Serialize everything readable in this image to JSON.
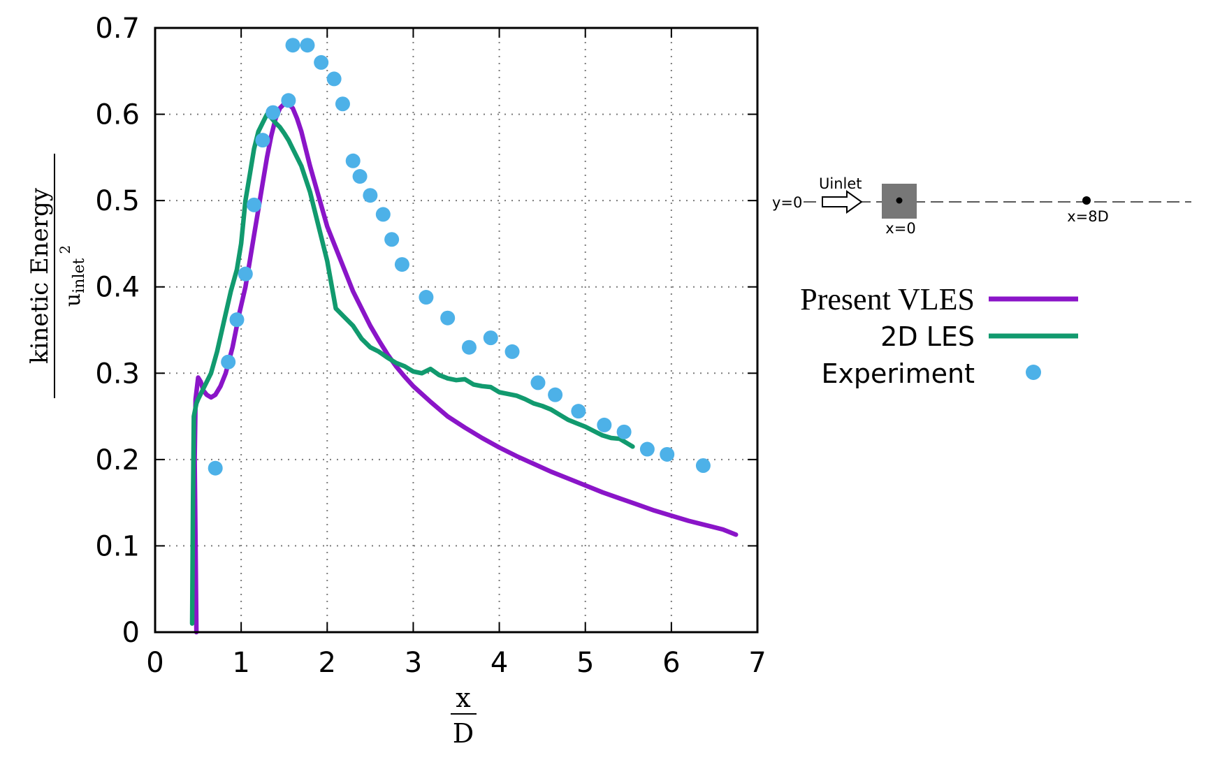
{
  "chart_data": {
    "type": "line",
    "title": "",
    "xlabel": {
      "numerator": "x",
      "denominator": "D"
    },
    "ylabel": {
      "numerator": "kinetic Energy",
      "denominator_base": "u",
      "denominator_sub": "inlet",
      "denominator_sup": "2"
    },
    "xlim": [
      0,
      7
    ],
    "ylim": [
      0,
      0.7
    ],
    "xticks": [
      0,
      1,
      2,
      3,
      4,
      5,
      6,
      7
    ],
    "yticks": [
      0,
      0.1,
      0.2,
      0.3,
      0.4,
      0.5,
      0.6,
      0.7
    ],
    "grid": true,
    "legend_position": "right",
    "series": [
      {
        "name": "Present VLES",
        "kind": "line",
        "color": "#8a15c8",
        "x": [
          0.48,
          0.47,
          0.46,
          0.47,
          0.5,
          0.53,
          0.56,
          0.6,
          0.65,
          0.7,
          0.76,
          0.82,
          0.9,
          0.98,
          1.05,
          1.1,
          1.15,
          1.2,
          1.25,
          1.3,
          1.35,
          1.4,
          1.45,
          1.5,
          1.55,
          1.6,
          1.65,
          1.7,
          1.75,
          1.8,
          1.9,
          2.0,
          2.1,
          2.2,
          2.3,
          2.4,
          2.5,
          2.6,
          2.7,
          2.8,
          2.9,
          3.0,
          3.2,
          3.4,
          3.6,
          3.8,
          4.0,
          4.2,
          4.4,
          4.6,
          4.8,
          5.0,
          5.2,
          5.4,
          5.6,
          5.8,
          6.0,
          6.2,
          6.4,
          6.6,
          6.75
        ],
        "y": [
          0.0,
          0.1,
          0.2,
          0.27,
          0.295,
          0.29,
          0.28,
          0.275,
          0.272,
          0.275,
          0.285,
          0.3,
          0.33,
          0.37,
          0.4,
          0.43,
          0.46,
          0.49,
          0.52,
          0.55,
          0.575,
          0.595,
          0.607,
          0.612,
          0.612,
          0.607,
          0.595,
          0.58,
          0.56,
          0.54,
          0.505,
          0.47,
          0.445,
          0.42,
          0.395,
          0.375,
          0.355,
          0.338,
          0.322,
          0.308,
          0.296,
          0.285,
          0.267,
          0.25,
          0.237,
          0.225,
          0.214,
          0.204,
          0.195,
          0.186,
          0.178,
          0.17,
          0.162,
          0.155,
          0.148,
          0.141,
          0.135,
          0.129,
          0.124,
          0.119,
          0.113
        ]
      },
      {
        "name": "2D LES",
        "kind": "line",
        "color": "#119a6e",
        "x": [
          0.43,
          0.44,
          0.45,
          0.48,
          0.5,
          0.55,
          0.6,
          0.65,
          0.72,
          0.8,
          0.88,
          0.95,
          1.0,
          1.05,
          1.1,
          1.15,
          1.2,
          1.25,
          1.3,
          1.35,
          1.4,
          1.45,
          1.5,
          1.55,
          1.6,
          1.7,
          1.8,
          1.9,
          2.0,
          2.1,
          2.2,
          2.3,
          2.4,
          2.5,
          2.6,
          2.7,
          2.8,
          2.9,
          3.0,
          3.1,
          3.2,
          3.3,
          3.4,
          3.5,
          3.6,
          3.7,
          3.8,
          3.9,
          4.0,
          4.1,
          4.2,
          4.3,
          4.4,
          4.5,
          4.6,
          4.7,
          4.8,
          4.9,
          5.0,
          5.1,
          5.2,
          5.3,
          5.4,
          5.5,
          5.55
        ],
        "y": [
          0.01,
          0.15,
          0.25,
          0.265,
          0.27,
          0.28,
          0.29,
          0.3,
          0.325,
          0.36,
          0.395,
          0.42,
          0.45,
          0.5,
          0.53,
          0.56,
          0.58,
          0.59,
          0.6,
          0.596,
          0.59,
          0.585,
          0.578,
          0.57,
          0.56,
          0.54,
          0.51,
          0.47,
          0.43,
          0.375,
          0.365,
          0.355,
          0.34,
          0.33,
          0.325,
          0.318,
          0.312,
          0.308,
          0.302,
          0.3,
          0.305,
          0.298,
          0.294,
          0.292,
          0.293,
          0.287,
          0.285,
          0.284,
          0.278,
          0.276,
          0.274,
          0.27,
          0.265,
          0.262,
          0.258,
          0.252,
          0.246,
          0.242,
          0.238,
          0.233,
          0.228,
          0.225,
          0.224,
          0.218,
          0.215
        ]
      },
      {
        "name": "Experiment",
        "kind": "scatter",
        "color": "#4db1e8",
        "x": [
          0.7,
          0.85,
          0.95,
          1.05,
          1.15,
          1.25,
          1.37,
          1.55,
          1.6,
          1.77,
          1.93,
          2.08,
          2.18,
          2.3,
          2.38,
          2.5,
          2.65,
          2.75,
          2.87,
          3.15,
          3.4,
          3.65,
          3.9,
          4.15,
          4.45,
          4.65,
          4.92,
          5.22,
          5.45,
          5.72,
          5.95,
          6.37
        ],
        "y": [
          0.19,
          0.313,
          0.362,
          0.415,
          0.495,
          0.57,
          0.602,
          0.616,
          0.68,
          0.68,
          0.66,
          0.641,
          0.612,
          0.546,
          0.528,
          0.506,
          0.484,
          0.455,
          0.426,
          0.388,
          0.364,
          0.33,
          0.341,
          0.325,
          0.289,
          0.275,
          0.256,
          0.24,
          0.232,
          0.212,
          0.206,
          0.193
        ]
      }
    ],
    "inset": {
      "y_label": "y=0",
      "flow_label": "Uinlet",
      "origin_label": "x=0",
      "probe_label": "x=8D"
    }
  }
}
